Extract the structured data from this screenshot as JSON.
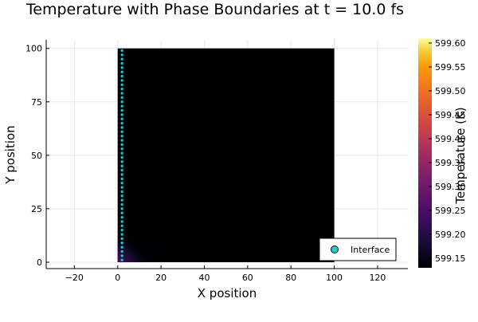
{
  "chart_data": {
    "type": "heatmap",
    "title": "Temperature with Phase Boundaries at t = 10.0 fs",
    "xlabel": "X position",
    "ylabel": "Y position",
    "xlim": [
      -33,
      134
    ],
    "ylim": [
      -3,
      104
    ],
    "x_ticks": [
      -20,
      0,
      20,
      40,
      60,
      80,
      100,
      120
    ],
    "y_ticks": [
      0,
      25,
      50,
      75,
      100
    ],
    "x_tick_labels": [
      "−20",
      "0",
      "20",
      "40",
      "60",
      "80",
      "100",
      "120"
    ],
    "y_tick_labels": [
      "0",
      "25",
      "50",
      "75",
      "100"
    ],
    "grid": true,
    "heatmap": {
      "x_extent": [
        0,
        100
      ],
      "y_extent": [
        0,
        100
      ],
      "colormap": "inferno",
      "background_value": 599.14,
      "hot_spot": {
        "x": 2,
        "y": 0,
        "peak": 599.45,
        "radius": 18
      }
    },
    "colorbar": {
      "label": "Temperature (K)",
      "min": 599.13,
      "max": 599.61,
      "tick_labels": [
        "599.15",
        "599.20",
        "599.25",
        "599.30",
        "599.35",
        "599.40",
        "599.45",
        "599.50",
        "599.55",
        "599.60"
      ],
      "tick_values": [
        599.15,
        599.2,
        599.25,
        599.3,
        599.35,
        599.4,
        599.45,
        599.5,
        599.55,
        599.6
      ]
    },
    "series": [
      {
        "name": "Interface",
        "type": "scatter",
        "color": "#1fcfcf",
        "x": 2,
        "y_values": [
          1,
          3,
          5,
          7,
          9,
          11,
          13,
          15,
          17,
          19,
          21,
          23,
          25,
          27,
          29,
          31,
          33,
          35,
          37,
          39,
          41,
          43,
          45,
          47,
          49,
          51,
          53,
          55,
          57,
          59,
          61,
          63,
          65,
          67,
          69,
          71,
          73,
          75,
          77,
          79,
          81,
          83,
          85,
          87,
          89,
          91,
          93,
          95,
          97,
          99
        ]
      }
    ],
    "legend": {
      "position": "bottom-right",
      "entries": [
        "Interface"
      ]
    }
  }
}
